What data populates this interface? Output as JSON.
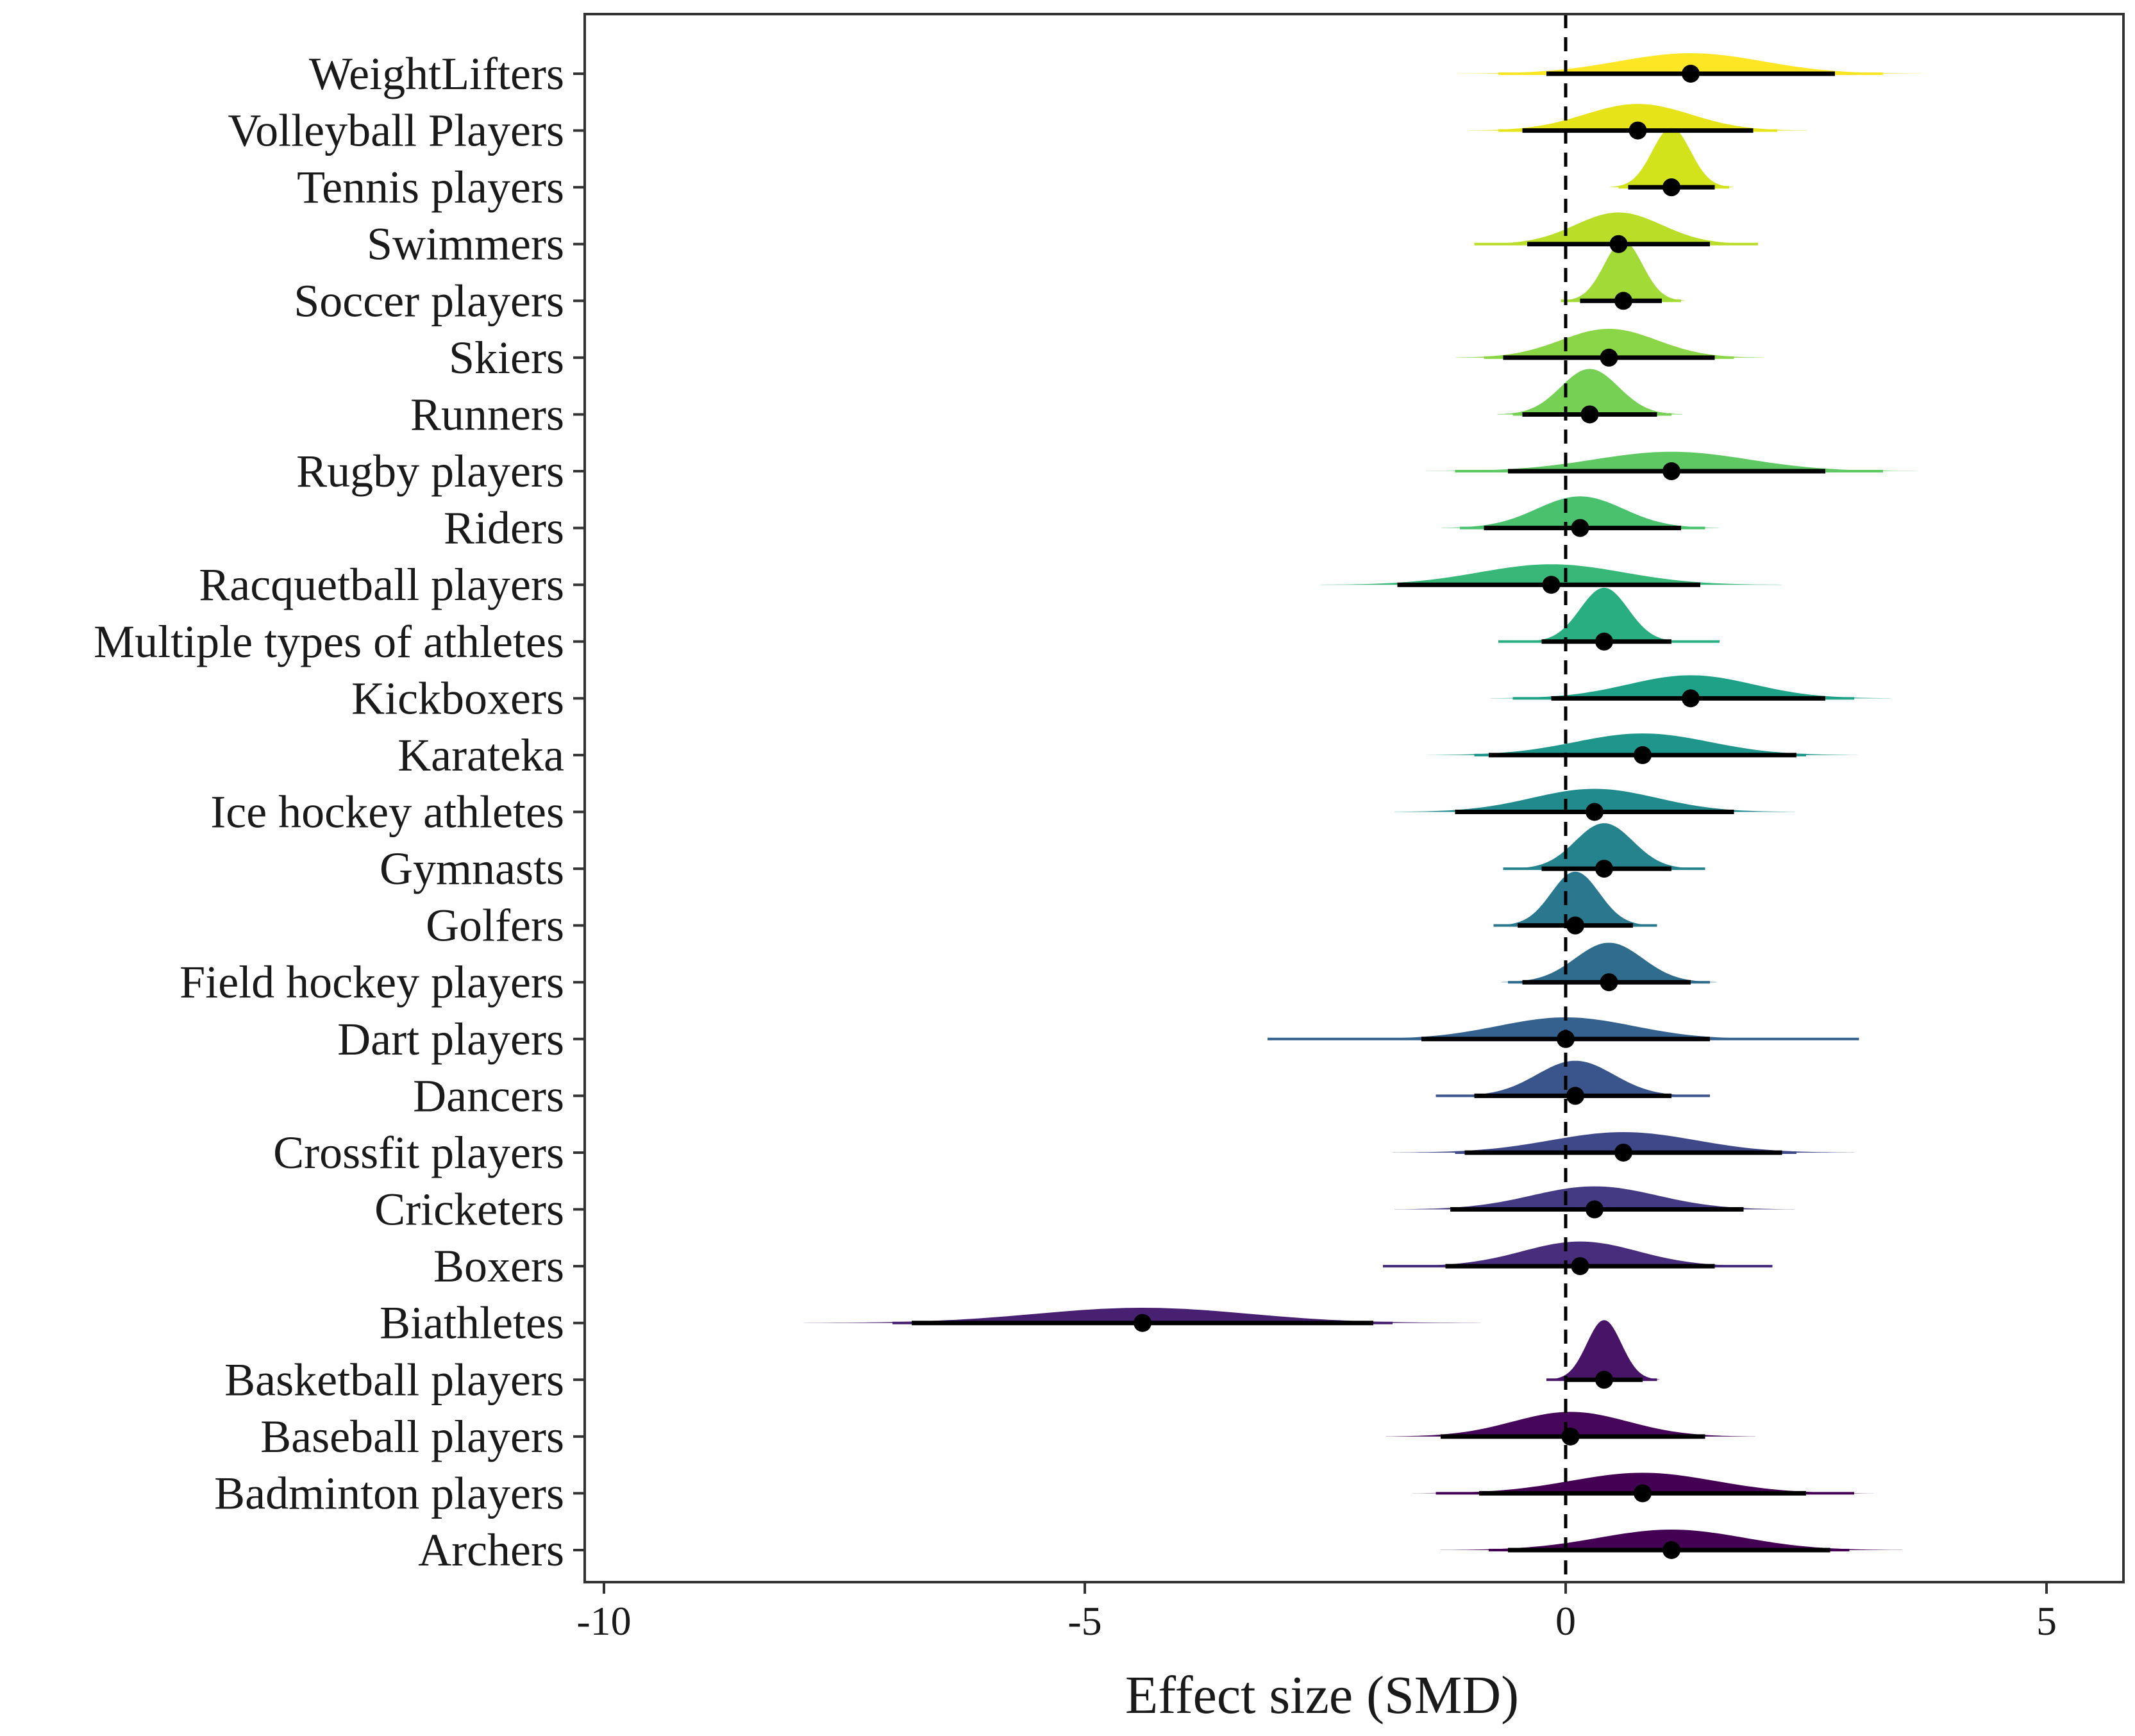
{
  "chart_data": {
    "type": "forest-density",
    "title": "",
    "xlabel": "Effect size (SMD)",
    "ylabel": "",
    "xlim": [
      -10.2,
      5.8
    ],
    "x_ticks": [
      -10,
      -5,
      0,
      5
    ],
    "x_tick_labels": [
      "-10",
      "-5",
      "0",
      "5"
    ],
    "reference_line": 0,
    "grid": false,
    "legend": "none",
    "categories": [
      {
        "name": "WeightLifters",
        "mean": 1.3,
        "ci80": [
          -0.2,
          2.8
        ],
        "ci95": [
          -0.7,
          3.3
        ],
        "sd": 0.75,
        "color": "#fde725"
      },
      {
        "name": "Volleyball Players",
        "mean": 0.75,
        "ci80": [
          -0.45,
          1.95
        ],
        "ci95": [
          -0.7,
          2.2
        ],
        "sd": 0.55,
        "color": "#e6e419"
      },
      {
        "name": "Tennis players",
        "mean": 1.1,
        "ci80": [
          0.65,
          1.55
        ],
        "ci95": [
          0.55,
          1.7
        ],
        "sd": 0.2,
        "color": "#d2e21b"
      },
      {
        "name": "Swimmers",
        "mean": 0.55,
        "ci80": [
          -0.4,
          1.5
        ],
        "ci95": [
          -0.95,
          2.0
        ],
        "sd": 0.45,
        "color": "#bade28"
      },
      {
        "name": "Soccer players",
        "mean": 0.6,
        "ci80": [
          0.15,
          1.0
        ],
        "ci95": [
          -0.05,
          1.2
        ],
        "sd": 0.2,
        "color": "#a2da37"
      },
      {
        "name": "Skiers",
        "mean": 0.45,
        "ci80": [
          -0.65,
          1.55
        ],
        "ci95": [
          -0.85,
          1.75
        ],
        "sd": 0.5,
        "color": "#8bd646"
      },
      {
        "name": "Runners",
        "mean": 0.25,
        "ci80": [
          -0.45,
          0.95
        ],
        "ci95": [
          -0.55,
          1.1
        ],
        "sd": 0.3,
        "color": "#75d054"
      },
      {
        "name": "Rugby players",
        "mean": 1.1,
        "ci80": [
          -0.6,
          2.7
        ],
        "ci95": [
          -1.15,
          3.3
        ],
        "sd": 0.8,
        "color": "#5ec962"
      },
      {
        "name": "Riders",
        "mean": 0.15,
        "ci80": [
          -0.85,
          1.2
        ],
        "ci95": [
          -1.1,
          1.45
        ],
        "sd": 0.45,
        "color": "#4ac16d"
      },
      {
        "name": "Racquetball players",
        "mean": -0.15,
        "ci80": [
          -1.75,
          1.4
        ],
        "ci95": [
          -1.75,
          1.4
        ],
        "sd": 0.75,
        "color": "#37b878"
      },
      {
        "name": "Multiple types of athletes",
        "mean": 0.4,
        "ci80": [
          -0.25,
          1.1
        ],
        "ci95": [
          -0.7,
          1.6
        ],
        "sd": 0.25,
        "color": "#28ae80"
      },
      {
        "name": "Kickboxers",
        "mean": 1.3,
        "ci80": [
          -0.15,
          2.7
        ],
        "ci95": [
          -0.55,
          3.0
        ],
        "sd": 0.65,
        "color": "#1fa187"
      },
      {
        "name": "Karateka",
        "mean": 0.8,
        "ci80": [
          -0.8,
          2.4
        ],
        "ci95": [
          -0.95,
          2.5
        ],
        "sd": 0.7,
        "color": "#1f968b"
      },
      {
        "name": "Ice hockey athletes",
        "mean": 0.3,
        "ci80": [
          -1.15,
          1.75
        ],
        "ci95": [
          -1.15,
          1.75
        ],
        "sd": 0.65,
        "color": "#218a8d"
      },
      {
        "name": "Gymnasts",
        "mean": 0.4,
        "ci80": [
          -0.25,
          1.1
        ],
        "ci95": [
          -0.65,
          1.45
        ],
        "sd": 0.3,
        "color": "#25838e"
      },
      {
        "name": "Golfers",
        "mean": 0.1,
        "ci80": [
          -0.5,
          0.7
        ],
        "ci95": [
          -0.75,
          0.95
        ],
        "sd": 0.25,
        "color": "#2a788e"
      },
      {
        "name": "Field hockey players",
        "mean": 0.45,
        "ci80": [
          -0.45,
          1.3
        ],
        "ci95": [
          -0.6,
          1.5
        ],
        "sd": 0.35,
        "color": "#2f6c8e"
      },
      {
        "name": "Dart players",
        "mean": 0.0,
        "ci80": [
          -1.5,
          1.5
        ],
        "ci95": [
          -3.1,
          3.05
        ],
        "sd": 0.7,
        "color": "#34618d"
      },
      {
        "name": "Dancers",
        "mean": 0.1,
        "ci80": [
          -0.95,
          1.1
        ],
        "ci95": [
          -1.35,
          1.5
        ],
        "sd": 0.4,
        "color": "#3a548c"
      },
      {
        "name": "Crossfit players",
        "mean": 0.6,
        "ci80": [
          -1.05,
          2.25
        ],
        "ci95": [
          -1.15,
          2.4
        ],
        "sd": 0.75,
        "color": "#3f4889"
      },
      {
        "name": "Cricketers",
        "mean": 0.3,
        "ci80": [
          -1.2,
          1.85
        ],
        "ci95": [
          -1.2,
          1.85
        ],
        "sd": 0.65,
        "color": "#443a83"
      },
      {
        "name": "Boxers",
        "mean": 0.15,
        "ci80": [
          -1.25,
          1.55
        ],
        "ci95": [
          -1.9,
          2.15
        ],
        "sd": 0.6,
        "color": "#472d7b"
      },
      {
        "name": "Biathletes",
        "mean": -4.4,
        "ci80": [
          -6.8,
          -2.0
        ],
        "ci95": [
          -7.0,
          -1.8
        ],
        "sd": 1.1,
        "color": "#482071"
      },
      {
        "name": "Basketball players",
        "mean": 0.4,
        "ci80": [
          0.0,
          0.8
        ],
        "ci95": [
          -0.2,
          0.95
        ],
        "sd": 0.18,
        "color": "#481467"
      },
      {
        "name": "Baseball players",
        "mean": 0.05,
        "ci80": [
          -1.3,
          1.45
        ],
        "ci95": [
          -1.3,
          1.45
        ],
        "sd": 0.6,
        "color": "#46075a"
      },
      {
        "name": "Badminton players",
        "mean": 0.8,
        "ci80": [
          -0.9,
          2.5
        ],
        "ci95": [
          -1.35,
          3.0
        ],
        "sd": 0.75,
        "color": "#440154"
      },
      {
        "name": "Archers",
        "mean": 1.1,
        "ci80": [
          -0.6,
          2.75
        ],
        "ci95": [
          -0.8,
          2.95
        ],
        "sd": 0.75,
        "color": "#440154"
      }
    ]
  }
}
